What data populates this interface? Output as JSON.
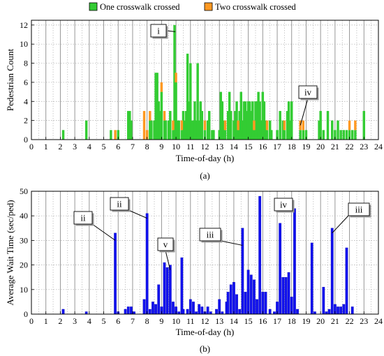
{
  "chart_data": [
    {
      "type": "bar",
      "panel_label": "(a)",
      "stacked": true,
      "xlabel": "Time-of-day (h)",
      "ylabel": "Pedestrian Count",
      "xlim": [
        0,
        24
      ],
      "ylim": [
        0,
        12.5
      ],
      "xticks": [
        0,
        1,
        2,
        3,
        4,
        5,
        6,
        7,
        8,
        9,
        10,
        11,
        12,
        13,
        14,
        15,
        16,
        17,
        18,
        19,
        20,
        21,
        22,
        23,
        24
      ],
      "yticks": [
        0,
        2,
        4,
        6,
        8,
        10,
        12
      ],
      "grid": true,
      "legend": {
        "position": "top",
        "entries": [
          "One crosswalk crossed",
          "Two crosswalk crossed"
        ]
      },
      "bin_width_h": 0.1667,
      "series": [
        {
          "name": "One crosswalk crossed",
          "color": "#33cc33",
          "points": [
            [
              2.2,
              1
            ],
            [
              3.8,
              2
            ],
            [
              5.5,
              1
            ],
            [
              5.8,
              0
            ],
            [
              6.0,
              1
            ],
            [
              6.7,
              3
            ],
            [
              6.8,
              3
            ],
            [
              6.9,
              2
            ],
            [
              7.8,
              0
            ],
            [
              8.0,
              0
            ],
            [
              8.2,
              2
            ],
            [
              8.3,
              2
            ],
            [
              8.5,
              2
            ],
            [
              8.6,
              7
            ],
            [
              8.7,
              7
            ],
            [
              8.8,
              4
            ],
            [
              8.9,
              3
            ],
            [
              9.0,
              5
            ],
            [
              9.2,
              2
            ],
            [
              9.3,
              2
            ],
            [
              9.5,
              2
            ],
            [
              9.6,
              3
            ],
            [
              9.8,
              1
            ],
            [
              9.9,
              12
            ],
            [
              10.0,
              6
            ],
            [
              10.1,
              2
            ],
            [
              10.2,
              2
            ],
            [
              10.4,
              1
            ],
            [
              10.5,
              3
            ],
            [
              10.6,
              2
            ],
            [
              10.7,
              3
            ],
            [
              10.8,
              9
            ],
            [
              10.9,
              4
            ],
            [
              11.0,
              8
            ],
            [
              11.1,
              2
            ],
            [
              11.2,
              2
            ],
            [
              11.3,
              4
            ],
            [
              11.4,
              2
            ],
            [
              11.5,
              8
            ],
            [
              11.6,
              2
            ],
            [
              11.7,
              4
            ],
            [
              11.8,
              3
            ],
            [
              12.0,
              1
            ],
            [
              12.2,
              2
            ],
            [
              12.3,
              3
            ],
            [
              12.5,
              1
            ],
            [
              12.6,
              1
            ],
            [
              13.0,
              1
            ],
            [
              13.1,
              5
            ],
            [
              13.2,
              4
            ],
            [
              13.3,
              2
            ],
            [
              13.4,
              1
            ],
            [
              13.6,
              3
            ],
            [
              13.7,
              5
            ],
            [
              13.8,
              3
            ],
            [
              14.0,
              2
            ],
            [
              14.1,
              3
            ],
            [
              14.2,
              4
            ],
            [
              14.3,
              1
            ],
            [
              14.4,
              3
            ],
            [
              14.5,
              5
            ],
            [
              14.6,
              2
            ],
            [
              14.7,
              4
            ],
            [
              14.8,
              4
            ],
            [
              14.9,
              3
            ],
            [
              15.0,
              4
            ],
            [
              15.1,
              4
            ],
            [
              15.2,
              3
            ],
            [
              15.3,
              4
            ],
            [
              15.4,
              1
            ],
            [
              15.5,
              4
            ],
            [
              15.6,
              4
            ],
            [
              15.7,
              5
            ],
            [
              15.8,
              4
            ],
            [
              15.9,
              2
            ],
            [
              16.0,
              5
            ],
            [
              16.1,
              4
            ],
            [
              16.2,
              2
            ],
            [
              16.3,
              1
            ],
            [
              16.5,
              2
            ],
            [
              16.6,
              1
            ],
            [
              17.0,
              1
            ],
            [
              17.2,
              3
            ],
            [
              17.4,
              2
            ],
            [
              17.5,
              1
            ],
            [
              17.7,
              3
            ],
            [
              17.8,
              4
            ],
            [
              17.9,
              2
            ],
            [
              18.0,
              4
            ],
            [
              18.6,
              1
            ],
            [
              18.8,
              1
            ],
            [
              19.0,
              1
            ],
            [
              19.9,
              2
            ],
            [
              20.0,
              3
            ],
            [
              20.2,
              1
            ],
            [
              20.5,
              3
            ],
            [
              20.8,
              2
            ],
            [
              21.0,
              1
            ],
            [
              21.2,
              2
            ],
            [
              21.4,
              1
            ],
            [
              21.6,
              1
            ],
            [
              21.8,
              1
            ],
            [
              22.0,
              1
            ],
            [
              22.2,
              1
            ],
            [
              22.4,
              1
            ],
            [
              23.0,
              3
            ]
          ]
        },
        {
          "name": "Two crosswalk crossed",
          "color": "#ff9922",
          "points": [
            [
              5.8,
              1
            ],
            [
              7.8,
              3
            ],
            [
              8.0,
              1
            ],
            [
              8.2,
              1
            ],
            [
              9.0,
              1
            ],
            [
              9.2,
              1
            ],
            [
              9.8,
              1
            ],
            [
              10.0,
              1
            ],
            [
              10.4,
              1
            ],
            [
              12.0,
              1
            ],
            [
              13.4,
              1
            ],
            [
              14.3,
              1
            ],
            [
              15.4,
              1
            ],
            [
              16.3,
              1
            ],
            [
              17.5,
              1
            ],
            [
              18.6,
              1
            ],
            [
              18.8,
              1
            ],
            [
              22.0,
              1
            ],
            [
              22.4,
              1
            ]
          ]
        }
      ],
      "annotations": [
        {
          "text": "i",
          "target": [
            9.95,
            11.3
          ]
        },
        {
          "text": "iv",
          "target": [
            18.6,
            1.5
          ]
        }
      ]
    },
    {
      "type": "bar",
      "panel_label": "(b)",
      "xlabel": "Time-of-day (h)",
      "ylabel": "Average Wait Time (sec/ped)",
      "xlim": [
        0,
        24
      ],
      "ylim": [
        0,
        50
      ],
      "xticks": [
        0,
        1,
        2,
        3,
        4,
        5,
        6,
        7,
        8,
        9,
        10,
        11,
        12,
        13,
        14,
        15,
        16,
        17,
        18,
        19,
        20,
        21,
        22,
        23,
        24
      ],
      "yticks": [
        0,
        10,
        20,
        30,
        40,
        50
      ],
      "grid": true,
      "bin_width_h": 0.1667,
      "series": [
        {
          "name": "Average Wait Time",
          "color": "#1111ee",
          "points": [
            [
              2.2,
              2
            ],
            [
              3.8,
              1
            ],
            [
              5.8,
              33
            ],
            [
              6.0,
              1
            ],
            [
              6.5,
              2
            ],
            [
              6.7,
              3
            ],
            [
              6.9,
              3
            ],
            [
              7.1,
              1
            ],
            [
              7.8,
              6
            ],
            [
              8.0,
              41
            ],
            [
              8.2,
              2
            ],
            [
              8.4,
              5
            ],
            [
              8.6,
              4
            ],
            [
              8.8,
              12
            ],
            [
              9.0,
              3
            ],
            [
              9.2,
              21
            ],
            [
              9.4,
              19
            ],
            [
              9.6,
              20
            ],
            [
              9.8,
              5
            ],
            [
              10.0,
              3
            ],
            [
              10.2,
              1
            ],
            [
              10.4,
              23
            ],
            [
              10.5,
              2
            ],
            [
              10.8,
              2
            ],
            [
              11.0,
              6
            ],
            [
              11.2,
              5
            ],
            [
              11.4,
              1
            ],
            [
              11.6,
              4
            ],
            [
              11.8,
              3
            ],
            [
              12.0,
              1
            ],
            [
              12.2,
              3
            ],
            [
              12.4,
              1
            ],
            [
              12.8,
              2
            ],
            [
              13.0,
              6
            ],
            [
              13.2,
              1
            ],
            [
              13.5,
              5
            ],
            [
              13.6,
              9
            ],
            [
              13.8,
              12
            ],
            [
              14.0,
              13
            ],
            [
              14.2,
              8
            ],
            [
              14.4,
              2
            ],
            [
              14.6,
              35
            ],
            [
              14.8,
              9
            ],
            [
              15.0,
              18
            ],
            [
              15.2,
              16
            ],
            [
              15.4,
              14
            ],
            [
              15.6,
              6
            ],
            [
              15.8,
              48
            ],
            [
              16.0,
              9
            ],
            [
              16.2,
              9
            ],
            [
              16.5,
              2
            ],
            [
              16.8,
              1
            ],
            [
              17.0,
              5
            ],
            [
              17.2,
              37
            ],
            [
              17.4,
              15
            ],
            [
              17.6,
              15
            ],
            [
              17.8,
              17
            ],
            [
              18.0,
              7
            ],
            [
              18.2,
              43
            ],
            [
              18.4,
              2
            ],
            [
              19.4,
              29
            ],
            [
              19.6,
              1
            ],
            [
              20.2,
              11
            ],
            [
              20.4,
              1
            ],
            [
              20.6,
              2
            ],
            [
              20.8,
              35
            ],
            [
              21.0,
              4
            ],
            [
              21.2,
              3
            ],
            [
              21.4,
              3
            ],
            [
              21.6,
              4
            ],
            [
              21.8,
              27
            ],
            [
              22.2,
              3
            ]
          ]
        }
      ],
      "annotations": [
        {
          "text": "ii",
          "target": [
            5.8,
            30
          ]
        },
        {
          "text": "ii",
          "target": [
            8.0,
            39
          ]
        },
        {
          "text": "v",
          "target": [
            9.6,
            18
          ]
        },
        {
          "text": "iii",
          "target": [
            14.6,
            28
          ]
        },
        {
          "text": "iv",
          "target": [
            18.2,
            42
          ]
        },
        {
          "text": "iii",
          "target": [
            20.8,
            33
          ]
        }
      ]
    }
  ]
}
